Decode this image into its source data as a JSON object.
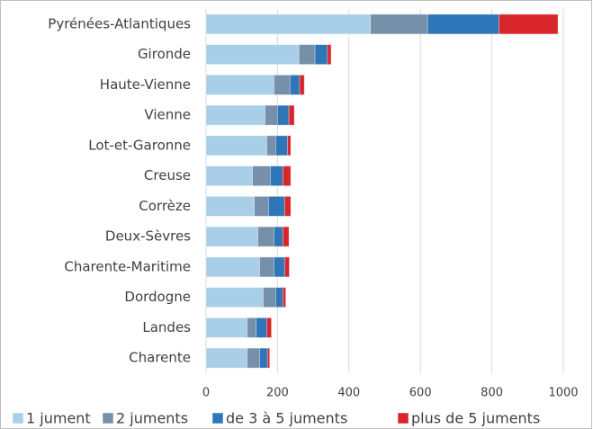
{
  "chart_data": {
    "type": "bar",
    "orientation": "horizontal",
    "stacked": true,
    "categories": [
      "Pyrénées-Atlantiques",
      "Gironde",
      "Haute-Vienne",
      "Vienne",
      "Lot-et-Garonne",
      "Creuse",
      "Corrèze",
      "Deux-Sèvres",
      "Charente-Maritime",
      "Dordogne",
      "Landes",
      "Charente"
    ],
    "series": [
      {
        "name": "1 jument",
        "color": "#a9cfe8",
        "values": [
          460,
          260,
          190,
          165,
          170,
          130,
          135,
          145,
          150,
          160,
          115,
          115
        ]
      },
      {
        "name": "2 juments",
        "color": "#7790aa",
        "values": [
          160,
          45,
          45,
          35,
          25,
          50,
          40,
          45,
          40,
          35,
          25,
          35
        ]
      },
      {
        "name": "de 3 à 5 juments",
        "color": "#2f76b8",
        "values": [
          200,
          35,
          27,
          32,
          33,
          35,
          45,
          25,
          30,
          20,
          30,
          22
        ]
      },
      {
        "name": "plus de 5 juments",
        "color": "#d8262c",
        "values": [
          165,
          10,
          13,
          15,
          9,
          22,
          17,
          17,
          13,
          8,
          13,
          6
        ]
      }
    ],
    "xlim": [
      0,
      1000
    ],
    "xticks": [
      0,
      200,
      400,
      600,
      800,
      1000
    ],
    "grid": true,
    "legend": "bottom"
  }
}
